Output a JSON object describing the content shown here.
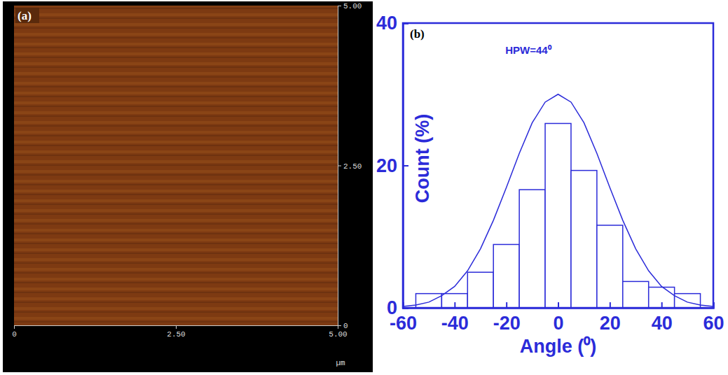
{
  "chart_data": [
    {
      "type": "image",
      "panel": "(a)",
      "xlabel": "µm",
      "xlim": [
        0,
        5
      ],
      "xticks": [
        0,
        {
          "value": 2.5,
          "label": "2.50"
        },
        {
          "value": 5,
          "label": "5.00"
        }
      ],
      "ylim": [
        0,
        5
      ],
      "yticks": [
        0,
        {
          "value": 2.5,
          "label": "2.50"
        },
        {
          "value": 5,
          "label": "5.00"
        }
      ]
    },
    {
      "type": "histogram",
      "panel": "(b)",
      "annotation": "HPW=44⁰",
      "xlabel": "Angle (⁰)",
      "ylabel": "Count (%)",
      "color": "#2b2bd9",
      "bins": [
        -55,
        -45,
        -35,
        -25,
        -15,
        -5,
        5,
        15,
        25,
        35,
        45,
        55
      ],
      "values": [
        2.0,
        2.0,
        5.0,
        8.9,
        16.6,
        25.9,
        19.3,
        11.6,
        3.7,
        2.9,
        2.0
      ],
      "fit": {
        "type": "line",
        "x": [
          -60,
          -55,
          -50,
          -45,
          -40,
          -35,
          -30,
          -25,
          -20,
          -15,
          -10,
          -5,
          0,
          5,
          10,
          15,
          20,
          25,
          30,
          35,
          40,
          45,
          50,
          55,
          60
        ],
        "values": [
          0.2,
          0.4,
          0.8,
          1.7,
          3.0,
          5.2,
          8.3,
          12.3,
          16.9,
          21.7,
          26.0,
          28.9,
          30.0,
          28.9,
          26.0,
          21.7,
          16.9,
          12.3,
          8.3,
          5.2,
          3.0,
          1.7,
          0.8,
          0.4,
          0.2
        ]
      },
      "xlim": [
        -60,
        60
      ],
      "xticks": [
        -60,
        -40,
        -20,
        0,
        20,
        40,
        60
      ],
      "ylim": [
        0,
        40
      ],
      "yticks": [
        0,
        20,
        40
      ]
    }
  ]
}
